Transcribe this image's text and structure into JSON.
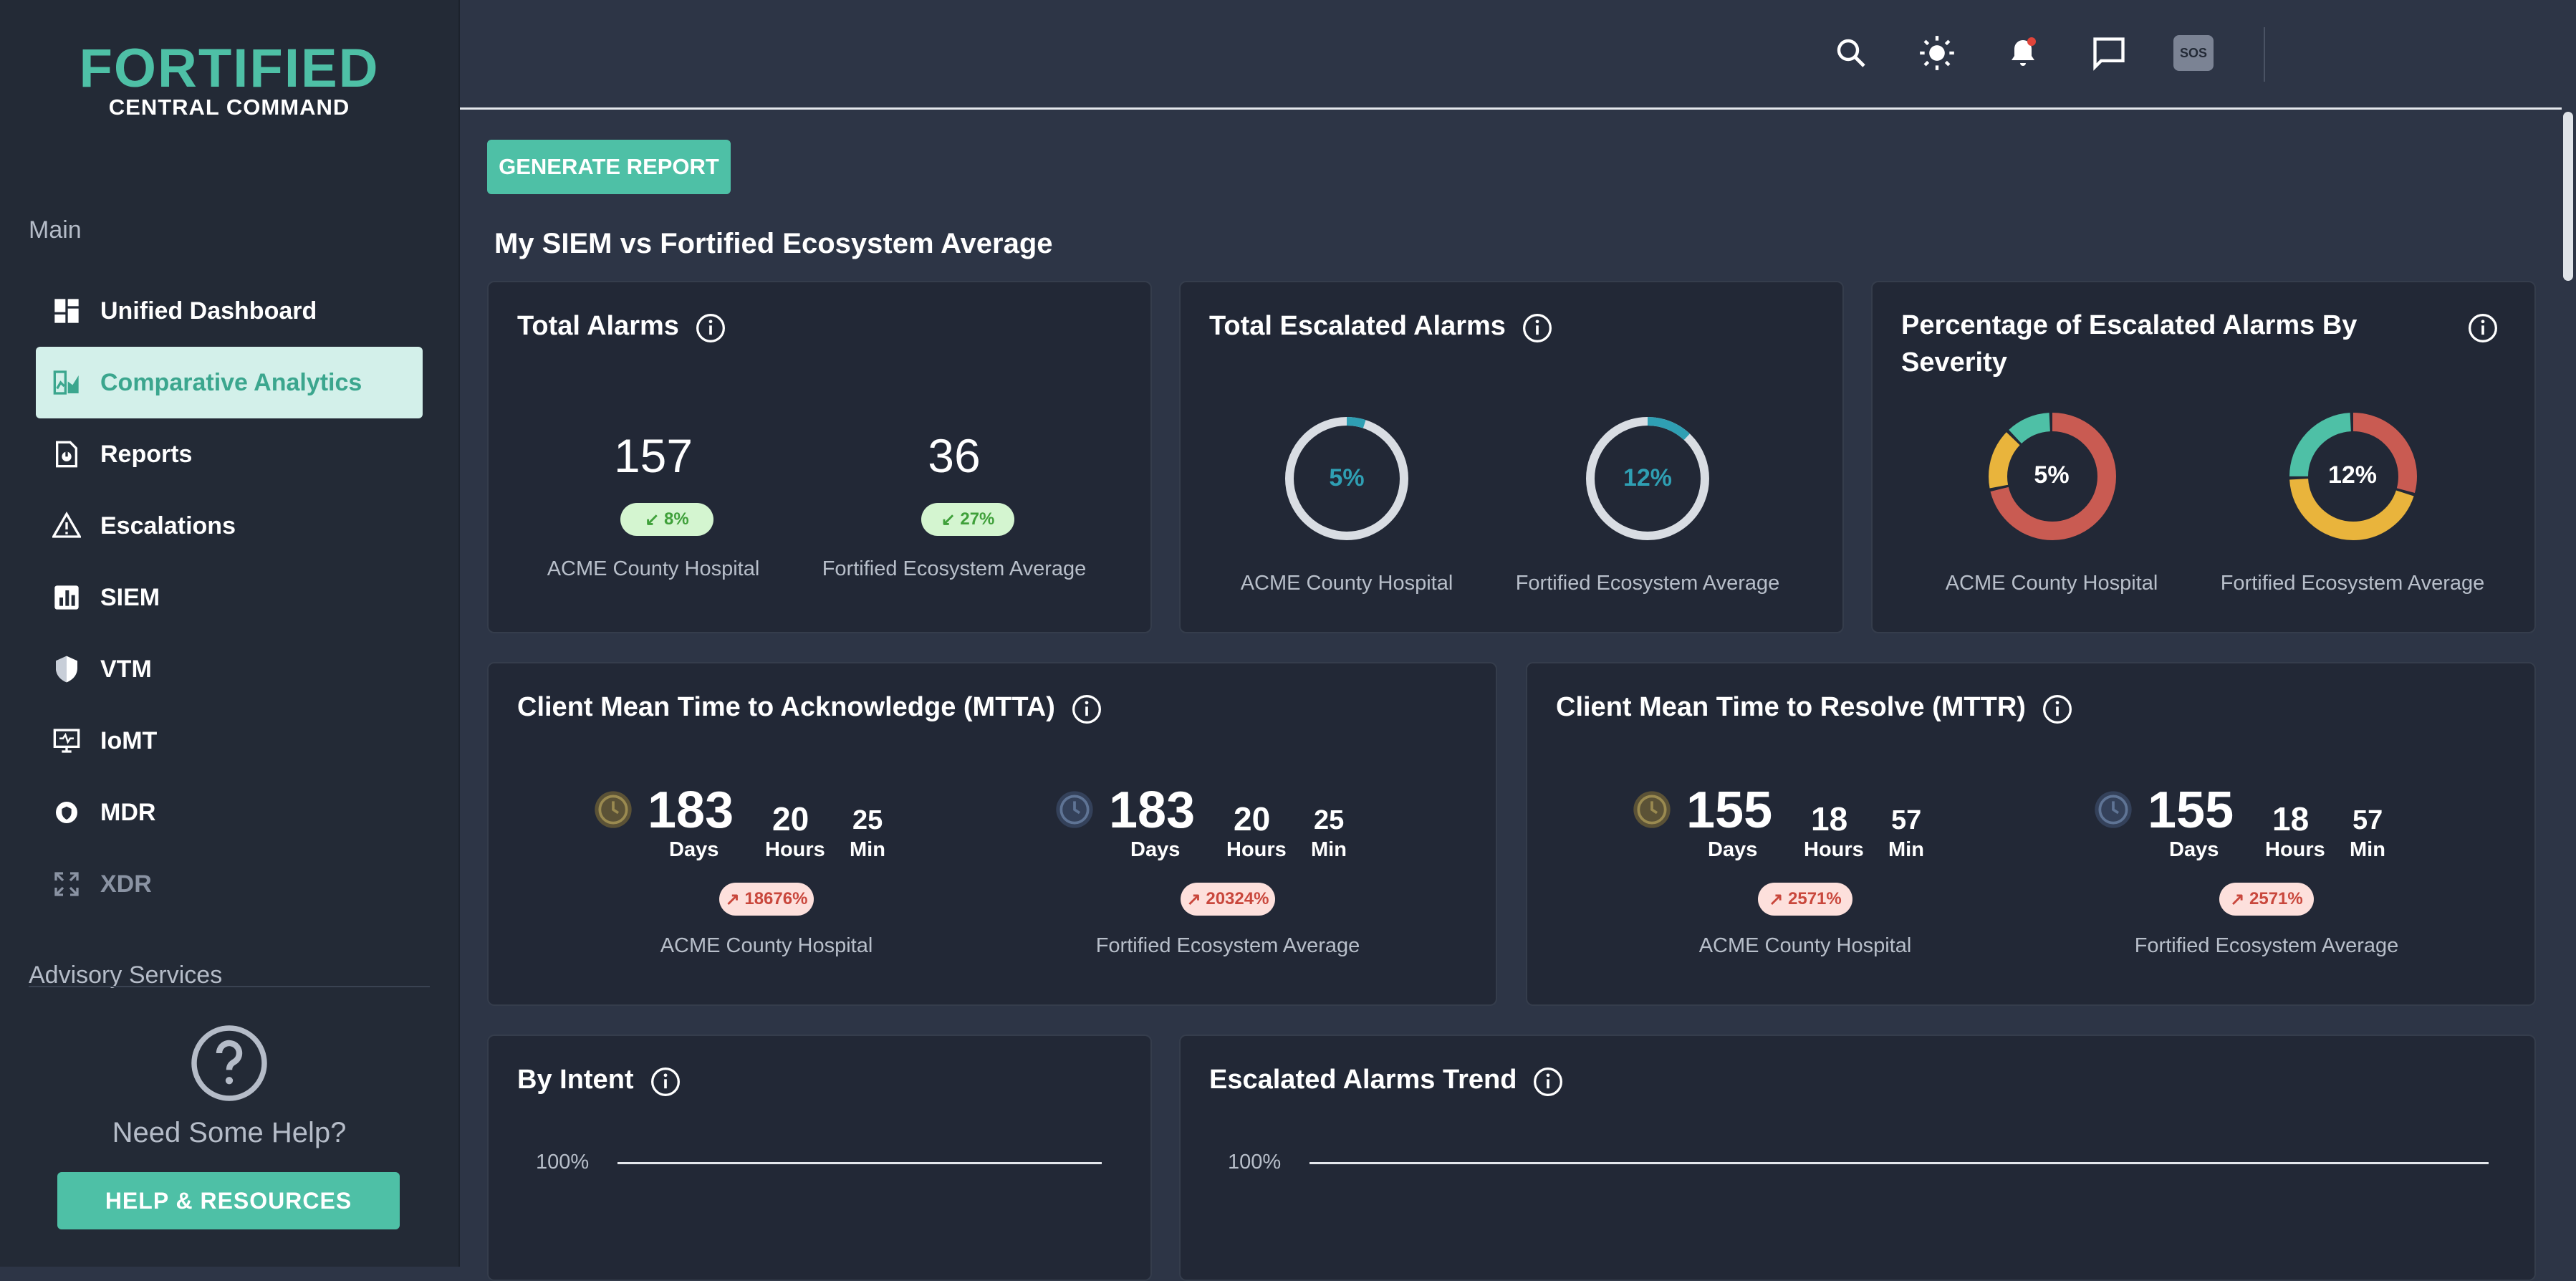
{
  "logo": {
    "top": "FORTIFIED",
    "bottom": "CENTRAL COMMAND"
  },
  "sidebar": {
    "main_label": "Main",
    "items": [
      {
        "label": "Unified Dashboard",
        "icon": "dashboard-icon"
      },
      {
        "label": "Comparative Analytics",
        "icon": "analytics-icon"
      },
      {
        "label": "Reports",
        "icon": "report-icon"
      },
      {
        "label": "Escalations",
        "icon": "warning-icon"
      },
      {
        "label": "SIEM",
        "icon": "bar-chart-icon"
      },
      {
        "label": "VTM",
        "icon": "shield-icon"
      },
      {
        "label": "IoMT",
        "icon": "monitor-icon"
      },
      {
        "label": "MDR",
        "icon": "gear-shield-icon"
      },
      {
        "label": "XDR",
        "icon": "expand-icon"
      }
    ],
    "advisory_label": "Advisory Services",
    "help_title": "Need Some Help?",
    "help_button": "HELP & RESOURCES"
  },
  "topbar": {
    "icons": [
      "search-icon",
      "brightness-icon",
      "bell-icon",
      "chat-icon",
      "sos-icon"
    ],
    "sos_label": "SOS"
  },
  "main": {
    "generate_button": "GENERATE REPORT",
    "page_title": "My SIEM vs Fortified Ecosystem Average",
    "cards": {
      "total_alarms": {
        "title": "Total Alarms",
        "left": {
          "value": "157",
          "change": "8%",
          "label": "ACME County Hospital"
        },
        "right": {
          "value": "36",
          "change": "27%",
          "label": "Fortified Ecosystem Average"
        }
      },
      "total_escalated": {
        "title": "Total Escalated Alarms",
        "left": {
          "value": "5%",
          "fraction": 0.05,
          "label": "ACME County Hospital"
        },
        "right": {
          "value": "12%",
          "fraction": 0.12,
          "label": "Fortified Ecosystem Average"
        }
      },
      "pct_severity": {
        "title": "Percentage of Escalated Alarms By Severity",
        "left": {
          "value": "5%",
          "label": "ACME County Hospital",
          "segments": [
            {
              "color": "#c95b52",
              "share": 0.72
            },
            {
              "color": "#e9b43c",
              "share": 0.16
            },
            {
              "color": "#4ec0a6",
              "share": 0.12
            }
          ]
        },
        "right": {
          "value": "12%",
          "label": "Fortified Ecosystem Average",
          "segments": [
            {
              "color": "#c95b52",
              "share": 0.3
            },
            {
              "color": "#e9b43c",
              "share": 0.45
            },
            {
              "color": "#4ec0a6",
              "share": 0.25
            }
          ]
        }
      },
      "mtta": {
        "title": "Client Mean Time to Acknowledge (MTTA)",
        "left": {
          "days": "183",
          "hours": "20",
          "min": "25",
          "change": "18676%",
          "label": "ACME County Hospital"
        },
        "right": {
          "days": "183",
          "hours": "20",
          "min": "25",
          "change": "20324%",
          "label": "Fortified Ecosystem Average"
        }
      },
      "mttr": {
        "title": "Client Mean Time to Resolve (MTTR)",
        "left": {
          "days": "155",
          "hours": "18",
          "min": "57",
          "change": "2571%",
          "label": "ACME County Hospital"
        },
        "right": {
          "days": "155",
          "hours": "18",
          "min": "57",
          "change": "2571%",
          "label": "Fortified Ecosystem Average"
        }
      },
      "by_intent": {
        "title": "By Intent",
        "axis_top": "100%"
      },
      "trend": {
        "title": "Escalated Alarms Trend",
        "axis_top": "100%"
      }
    },
    "units": {
      "days": "Days",
      "hours": "Hours",
      "min": "Min"
    }
  }
}
